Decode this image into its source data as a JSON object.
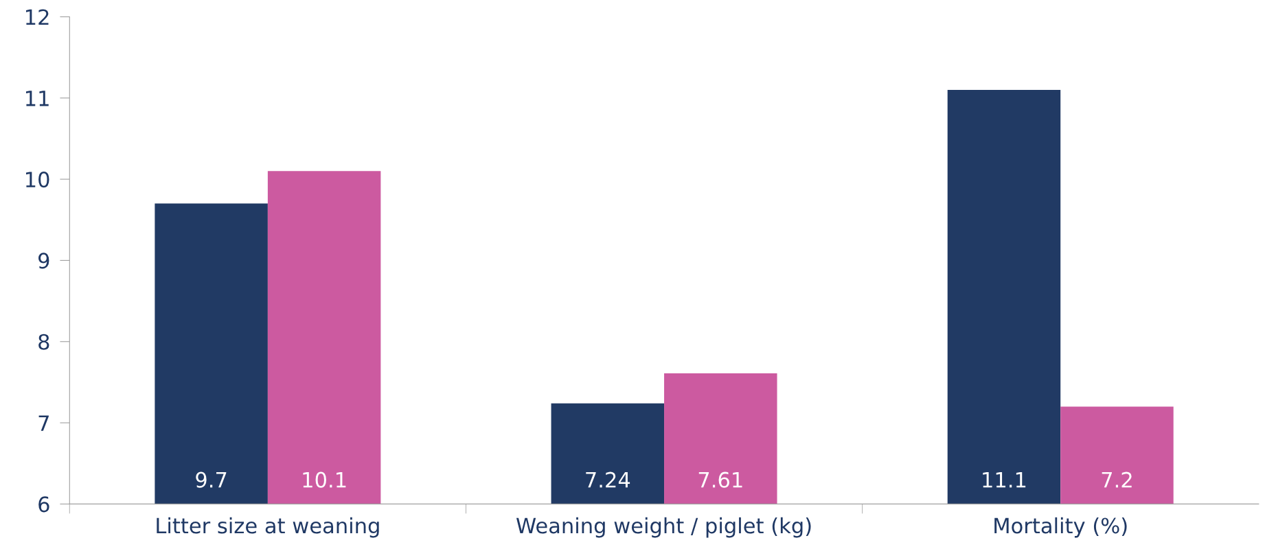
{
  "chart_data": {
    "type": "bar",
    "categories": [
      "Litter size at weaning",
      "Weaning weight / piglet (kg)",
      "Mortality (%)"
    ],
    "series": [
      {
        "color": "#213a64",
        "values": [
          9.7,
          7.24,
          11.1
        ]
      },
      {
        "color": "#cc5aa0",
        "values": [
          10.1,
          7.61,
          7.2
        ]
      }
    ],
    "ylim": [
      6,
      12
    ],
    "yticks": [
      6,
      7,
      8,
      9,
      10,
      11,
      12
    ],
    "grid": false,
    "legend": false,
    "data_labels": true
  }
}
